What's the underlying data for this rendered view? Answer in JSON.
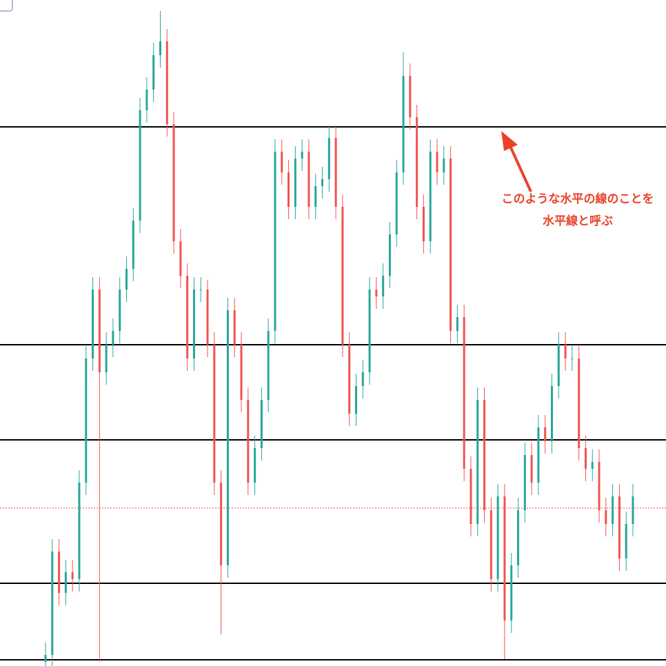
{
  "chart_data": {
    "type": "candlestick",
    "annotation": [
      "このような水平の線のことを",
      "水平線と呼ぶ"
    ],
    "ylim": [
      0,
      966
    ],
    "up_color": "#26a69a",
    "down_color": "#ef5350",
    "hlines": [
      782,
      466,
      328,
      120,
      9
    ],
    "hline_color": "#000000",
    "current_price": 229,
    "current_price_color": "#e8553e",
    "open": [
      6,
      16,
      166,
      106,
      136,
      126,
      266,
      446,
      546,
      426,
      466,
      486,
      546,
      576,
      646,
      806,
      836,
      886,
      906,
      786,
      616,
      566,
      446,
      546,
      546,
      466,
      266,
      146,
      516,
      466,
      386,
      266,
      316,
      386,
      486,
      746,
      716,
      666,
      736,
      746,
      666,
      696,
      706,
      766,
      666,
      466,
      366,
      406,
      426,
      546,
      536,
      566,
      626,
      716,
      856,
      796,
      666,
      616,
      746,
      716,
      736,
      486,
      506,
      286,
      206,
      386,
      226,
      126,
      246,
      66,
      146,
      226,
      306,
      266,
      346,
      326,
      406,
      466,
      446,
      446,
      316,
      286,
      296,
      226,
      206,
      246,
      156,
      206
    ],
    "high": [
      34,
      184,
      184,
      154,
      154,
      284,
      464,
      564,
      564,
      484,
      504,
      564,
      594,
      664,
      824,
      854,
      904,
      950,
      924,
      804,
      634,
      584,
      564,
      564,
      560,
      484,
      284,
      534,
      534,
      484,
      404,
      334,
      404,
      504,
      764,
      764,
      734,
      754,
      764,
      764,
      714,
      724,
      784,
      784,
      684,
      484,
      424,
      444,
      564,
      564,
      584,
      644,
      734,
      890,
      874,
      814,
      684,
      764,
      764,
      754,
      754,
      524,
      524,
      304,
      404,
      404,
      244,
      264,
      264,
      164,
      244,
      324,
      324,
      364,
      364,
      424,
      484,
      484,
      464,
      464,
      334,
      314,
      314,
      244,
      264,
      264,
      224,
      264
    ],
    "low": [
      0,
      0,
      88,
      88,
      108,
      108,
      248,
      428,
      6,
      408,
      448,
      468,
      528,
      558,
      628,
      788,
      818,
      868,
      768,
      598,
      548,
      428,
      428,
      528,
      448,
      248,
      46,
      128,
      448,
      368,
      248,
      248,
      298,
      368,
      468,
      698,
      648,
      648,
      718,
      648,
      648,
      678,
      688,
      648,
      448,
      348,
      348,
      388,
      408,
      518,
      518,
      548,
      608,
      698,
      778,
      648,
      598,
      598,
      698,
      698,
      468,
      468,
      268,
      188,
      188,
      208,
      108,
      108,
      10,
      48,
      128,
      208,
      248,
      248,
      308,
      308,
      388,
      428,
      428,
      298,
      268,
      268,
      208,
      188,
      188,
      138,
      138,
      188
    ],
    "close": [
      16,
      166,
      106,
      136,
      126,
      266,
      446,
      546,
      426,
      466,
      486,
      546,
      576,
      646,
      806,
      836,
      886,
      906,
      786,
      616,
      566,
      446,
      546,
      546,
      466,
      266,
      146,
      516,
      466,
      386,
      266,
      316,
      386,
      486,
      746,
      716,
      666,
      736,
      746,
      666,
      696,
      706,
      766,
      666,
      466,
      366,
      406,
      426,
      546,
      536,
      566,
      626,
      716,
      856,
      796,
      666,
      616,
      746,
      716,
      736,
      486,
      506,
      286,
      206,
      386,
      226,
      126,
      246,
      66,
      146,
      226,
      306,
      266,
      346,
      326,
      406,
      466,
      446,
      446,
      316,
      286,
      296,
      226,
      206,
      246,
      156,
      206,
      246
    ]
  }
}
